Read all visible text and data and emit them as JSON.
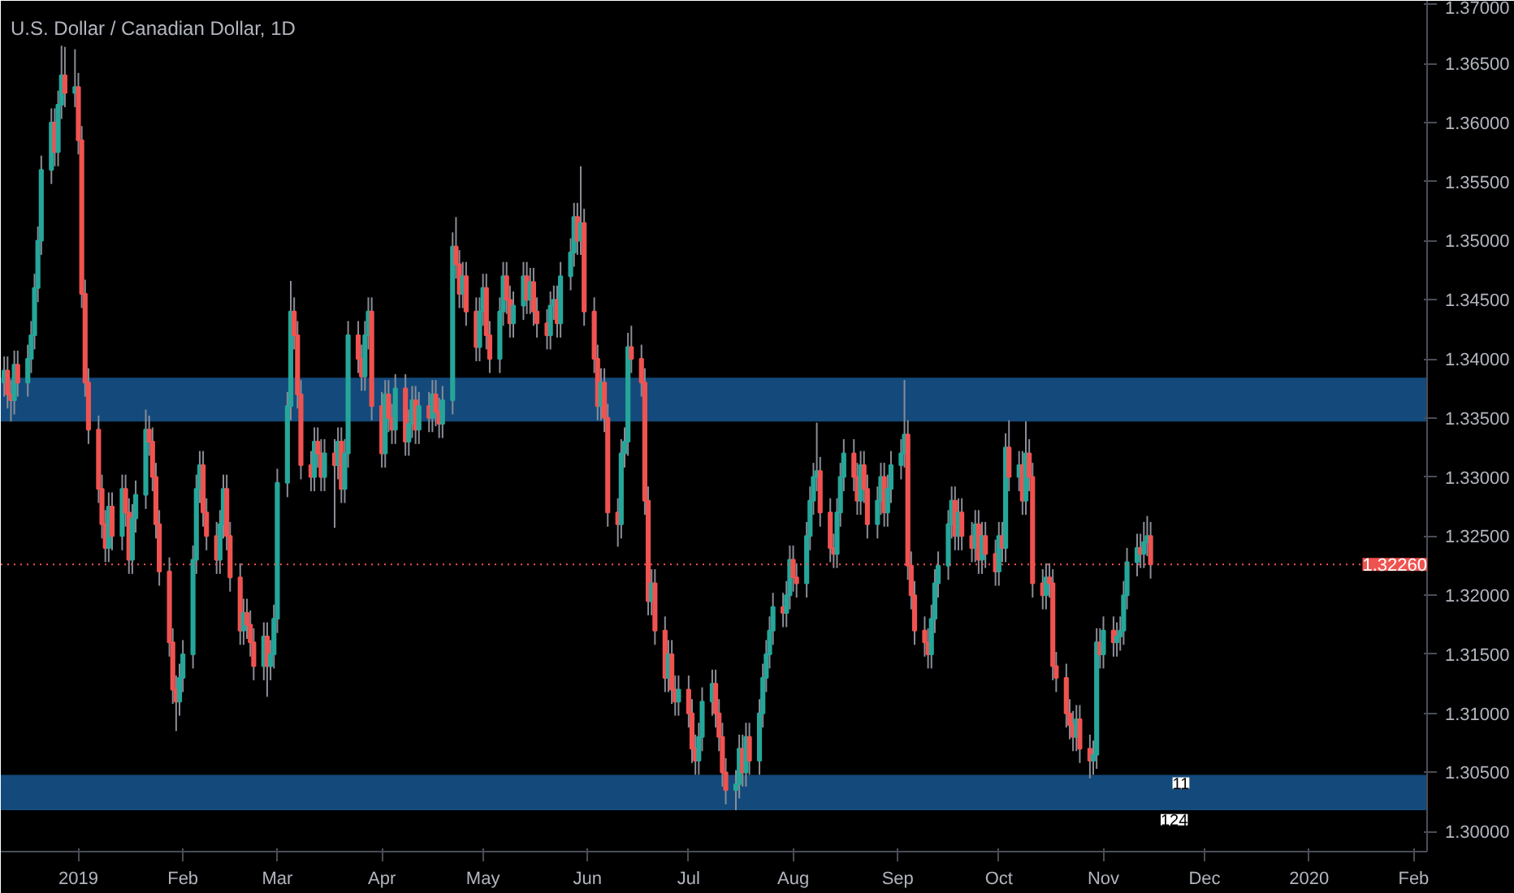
{
  "chart_data": {
    "type": "candlestick",
    "title": "U.S. Dollar / Canadian Dollar, 1D",
    "colors": [
      "#26a69a",
      "#ef5350",
      "#ef5350",
      "#26a69a",
      "#ef5350",
      "#26a69a",
      "#26a69a",
      "#26a69a",
      "#26a69a",
      "#26a69a",
      "#26a69a",
      "#ef5350",
      "#26a69a",
      "#26a69a",
      "#ef5350",
      "#26a69a",
      "#ef5350",
      "#ef5350",
      "#ef5350",
      "#ef5350",
      "#ef5350",
      "#ef5350",
      "#ef5350",
      "#26a69a",
      "#ef5350",
      "#26a69a",
      "#ef5350",
      "#ef5350",
      "#26a69a",
      "#26a69a",
      "#26a69a",
      "#ef5350",
      "#ef5350",
      "#ef5350",
      "#ef5350",
      "#ef5350",
      "#ef5350",
      "#ef5350",
      "#26a69a",
      "#26a69a",
      "#26a69a",
      "#26a69a",
      "#26a69a",
      "#ef5350",
      "#ef5350",
      "#ef5350",
      "#26a69a",
      "#26a69a",
      "#ef5350",
      "#ef5350",
      "#ef5350",
      "#26a69a",
      "#ef5350",
      "#ef5350",
      "#ef5350",
      "#26a69a",
      "#ef5350",
      "#26a69a",
      "#26a69a",
      "#26a69a",
      "#26a69a",
      "#26a69a",
      "#ef5350",
      "#ef5350",
      "#ef5350",
      "#ef5350",
      "#26a69a",
      "#ef5350",
      "#ef5350",
      "#26a69a",
      "#ef5350",
      "#26a69a",
      "#ef5350",
      "#26a69a",
      "#26a69a",
      "#ef5350",
      "#ef5350",
      "#26a69a",
      "#26a69a",
      "#ef5350",
      "#ef5350",
      "#26a69a",
      "#ef5350",
      "#ef5350",
      "#26a69a",
      "#ef5350",
      "#26a69a",
      "#26a69a",
      "#ef5350",
      "#26a69a",
      "#ef5350",
      "#26a69a",
      "#ef5350",
      "#ef5350",
      "#26a69a",
      "#26a69a",
      "#ef5350",
      "#ef5350",
      "#26a69a",
      "#ef5350",
      "#ef5350",
      "#26a69a",
      "#26a69a",
      "#ef5350",
      "#ef5350",
      "#26a69a",
      "#26a69a",
      "#ef5350",
      "#ef5350",
      "#26a69a",
      "#26a69a",
      "#ef5350",
      "#26a69a",
      "#ef5350",
      "#ef5350",
      "#ef5350",
      "#26a69a",
      "#26a69a",
      "#ef5350",
      "#26a69a",
      "#26a69a",
      "#26a69a",
      "#ef5350",
      "#26a69a",
      "#ef5350",
      "#ef5350",
      "#ef5350",
      "#26a69a",
      "#ef5350",
      "#ef5350",
      "#ef5350",
      "#26a69a",
      "#26a69a",
      "#26a69a",
      "#ef5350",
      "#ef5350",
      "#ef5350",
      "#ef5350",
      "#26a69a",
      "#ef5350",
      "#ef5350",
      "#26a69a",
      "#ef5350",
      "#ef5350",
      "#26a69a",
      "#ef5350",
      "#ef5350",
      "#ef5350",
      "#26a69a",
      "#26a69a",
      "#26a69a",
      "#ef5350",
      "#ef5350",
      "#ef5350",
      "#ef5350",
      "#26a69a",
      "#26a69a",
      "#ef5350",
      "#26a69a",
      "#ef5350",
      "#26a69a",
      "#26a69a",
      "#26a69a",
      "#26a69a",
      "#26a69a",
      "#ef5350",
      "#26a69a",
      "#26a69a",
      "#ef5350",
      "#ef5350",
      "#26a69a",
      "#26a69a",
      "#26a69a",
      "#26a69a",
      "#ef5350",
      "#ef5350",
      "#ef5350",
      "#26a69a",
      "#26a69a",
      "#26a69a",
      "#ef5350",
      "#ef5350",
      "#26a69a",
      "#ef5350",
      "#ef5350",
      "#26a69a",
      "#26a69a",
      "#ef5350",
      "#26a69a",
      "#26a69a",
      "#26a69a",
      "#26a69a",
      "#ef5350",
      "#ef5350",
      "#ef5350",
      "#ef5350",
      "#ef5350",
      "#26a69a",
      "#26a69a",
      "#26a69a",
      "#26a69a",
      "#26a69a",
      "#ef5350",
      "#26a69a",
      "#ef5350",
      "#ef5350",
      "#26a69a",
      "#ef5350",
      "#26a69a",
      "#ef5350",
      "#ef5350",
      "#26a69a",
      "#ef5350",
      "#26a69a",
      "#ef5350",
      "#26a69a",
      "#ef5350",
      "#26a69a",
      "#ef5350",
      "#ef5350",
      "#ef5350",
      "#26a69a",
      "#ef5350",
      "#ef5350",
      "#ef5350",
      "#ef5350",
      "#ef5350",
      "#ef5350",
      "#26a69a",
      "#ef5350",
      "#ef5350",
      "#26a69a",
      "#26a69a",
      "#ef5350",
      "#26a69a",
      "#ef5350",
      "#26a69a",
      "#26a69a",
      "#26a69a",
      "#26a69a",
      "#26a69a",
      "#ef5350",
      "#26a69a",
      "#26a69a",
      "#ef5350"
    ],
    "x": [
      "2018-12-10",
      "2018-12-11",
      "2018-12-12",
      "2018-12-13",
      "2018-12-14",
      "2018-12-17",
      "2018-12-18",
      "2018-12-19",
      "2018-12-20",
      "2018-12-21",
      "2018-12-24",
      "2018-12-25",
      "2018-12-26",
      "2018-12-27",
      "2018-12-28",
      "2018-12-31",
      "2019-01-01",
      "2019-01-02",
      "2019-01-03",
      "2019-01-04",
      "2019-01-07",
      "2019-01-08",
      "2019-01-09",
      "2019-01-10",
      "2019-01-11",
      "2019-01-14",
      "2019-01-15",
      "2019-01-16",
      "2019-01-17",
      "2019-01-18",
      "2019-01-21",
      "2019-01-22",
      "2019-01-23",
      "2019-01-24",
      "2019-01-25",
      "2019-01-28",
      "2019-01-29",
      "2019-01-30",
      "2019-01-31",
      "2019-02-01",
      "2019-02-04",
      "2019-02-05",
      "2019-02-06",
      "2019-02-07",
      "2019-02-08",
      "2019-02-11",
      "2019-02-12",
      "2019-02-13",
      "2019-02-14",
      "2019-02-15",
      "2019-02-18",
      "2019-02-19",
      "2019-02-20",
      "2019-02-21",
      "2019-02-22",
      "2019-02-25",
      "2019-02-26",
      "2019-02-27",
      "2019-02-28",
      "2019-03-01",
      "2019-03-04",
      "2019-03-05",
      "2019-03-06",
      "2019-03-07",
      "2019-03-08",
      "2019-03-11",
      "2019-03-12",
      "2019-03-13",
      "2019-03-14",
      "2019-03-15",
      "2019-03-18",
      "2019-03-19",
      "2019-03-20",
      "2019-03-21",
      "2019-03-22",
      "2019-03-25",
      "2019-03-26",
      "2019-03-27",
      "2019-03-28",
      "2019-03-29",
      "2019-04-01",
      "2019-04-02",
      "2019-04-03",
      "2019-04-04",
      "2019-04-05",
      "2019-04-08",
      "2019-04-09",
      "2019-04-10",
      "2019-04-11",
      "2019-04-12",
      "2019-04-15",
      "2019-04-16",
      "2019-04-17",
      "2019-04-18",
      "2019-04-19",
      "2019-04-22",
      "2019-04-23",
      "2019-04-24",
      "2019-04-25",
      "2019-04-26",
      "2019-04-29",
      "2019-04-30",
      "2019-05-01",
      "2019-05-02",
      "2019-05-03",
      "2019-05-06",
      "2019-05-07",
      "2019-05-08",
      "2019-05-09",
      "2019-05-10",
      "2019-05-13",
      "2019-05-14",
      "2019-05-15",
      "2019-05-16",
      "2019-05-17",
      "2019-05-20",
      "2019-05-21",
      "2019-05-22",
      "2019-05-23",
      "2019-05-24",
      "2019-05-27",
      "2019-05-28",
      "2019-05-29",
      "2019-05-30",
      "2019-05-31",
      "2019-06-03",
      "2019-06-04",
      "2019-06-05",
      "2019-06-06",
      "2019-06-07",
      "2019-06-10",
      "2019-06-11",
      "2019-06-12",
      "2019-06-13",
      "2019-06-14",
      "2019-06-17",
      "2019-06-18",
      "2019-06-19",
      "2019-06-20",
      "2019-06-21",
      "2019-06-24",
      "2019-06-25",
      "2019-06-26",
      "2019-06-27",
      "2019-06-28",
      "2019-07-01",
      "2019-07-02",
      "2019-07-03",
      "2019-07-04",
      "2019-07-05",
      "2019-07-08",
      "2019-07-09",
      "2019-07-10",
      "2019-07-11",
      "2019-07-12",
      "2019-07-15",
      "2019-07-16",
      "2019-07-17",
      "2019-07-18",
      "2019-07-19",
      "2019-07-22",
      "2019-07-23",
      "2019-07-24",
      "2019-07-25",
      "2019-07-26",
      "2019-07-29",
      "2019-07-30",
      "2019-07-31",
      "2019-08-01",
      "2019-08-02",
      "2019-08-05",
      "2019-08-06",
      "2019-08-07",
      "2019-08-08",
      "2019-08-09",
      "2019-08-12",
      "2019-08-13",
      "2019-08-14",
      "2019-08-15",
      "2019-08-16",
      "2019-08-19",
      "2019-08-20",
      "2019-08-21",
      "2019-08-22",
      "2019-08-23",
      "2019-08-26",
      "2019-08-27",
      "2019-08-28",
      "2019-08-29",
      "2019-08-30",
      "2019-09-02",
      "2019-09-03",
      "2019-09-04",
      "2019-09-05",
      "2019-09-06",
      "2019-09-09",
      "2019-09-10",
      "2019-09-11",
      "2019-09-12",
      "2019-09-13",
      "2019-09-16",
      "2019-09-17",
      "2019-09-18",
      "2019-09-19",
      "2019-09-20",
      "2019-09-23",
      "2019-09-24",
      "2019-09-25",
      "2019-09-26",
      "2019-09-27",
      "2019-09-30",
      "2019-10-01",
      "2019-10-02",
      "2019-10-03",
      "2019-10-04",
      "2019-10-07",
      "2019-10-08",
      "2019-10-09",
      "2019-10-10",
      "2019-10-11",
      "2019-10-14",
      "2019-10-15",
      "2019-10-16",
      "2019-10-17",
      "2019-10-18",
      "2019-10-21",
      "2019-10-22",
      "2019-10-23",
      "2019-10-24",
      "2019-10-25",
      "2019-10-28",
      "2019-10-29",
      "2019-10-30",
      "2019-10-31",
      "2019-11-01",
      "2019-11-04",
      "2019-11-05",
      "2019-11-06",
      "2019-11-07",
      "2019-11-08",
      "2019-11-11",
      "2019-11-12",
      "2019-11-13",
      "2019-11-14",
      "2019-11-15"
    ],
    "ohlc": [
      [
        1.338,
        1.3402,
        1.3368,
        1.339
      ],
      [
        1.339,
        1.3402,
        1.3358,
        1.337
      ],
      [
        1.337,
        1.3382,
        1.3347,
        1.3365
      ],
      [
        1.3365,
        1.3407,
        1.3353,
        1.3395
      ],
      [
        1.3395,
        1.3407,
        1.3368,
        1.338
      ],
      [
        1.338,
        1.3412,
        1.3368,
        1.34
      ],
      [
        1.34,
        1.3432,
        1.3388,
        1.342
      ],
      [
        1.342,
        1.3472,
        1.3408,
        1.346
      ],
      [
        1.346,
        1.3512,
        1.3448,
        1.35
      ],
      [
        1.35,
        1.3572,
        1.3488,
        1.356
      ],
      [
        1.356,
        1.3612,
        1.3548,
        1.36
      ],
      [
        1.36,
        1.3612,
        1.3563,
        1.3575
      ],
      [
        1.3575,
        1.3627,
        1.3563,
        1.3615
      ],
      [
        1.3615,
        1.3665,
        1.3603,
        1.364
      ],
      [
        1.364,
        1.3664,
        1.3613,
        1.3625
      ],
      [
        1.3625,
        1.3662,
        1.3613,
        1.363
      ],
      [
        1.363,
        1.3642,
        1.3573,
        1.3585
      ],
      [
        1.3585,
        1.3597,
        1.3443,
        1.3455
      ],
      [
        1.3455,
        1.3467,
        1.3368,
        1.338
      ],
      [
        1.338,
        1.3392,
        1.3328,
        1.334
      ],
      [
        1.334,
        1.3352,
        1.3278,
        1.329
      ],
      [
        1.329,
        1.3302,
        1.3248,
        1.326
      ],
      [
        1.326,
        1.3272,
        1.3228,
        1.324
      ],
      [
        1.324,
        1.3287,
        1.3228,
        1.3275
      ],
      [
        1.3275,
        1.3287,
        1.3238,
        1.325
      ],
      [
        1.325,
        1.3302,
        1.3238,
        1.329
      ],
      [
        1.329,
        1.3302,
        1.3258,
        1.327
      ],
      [
        1.327,
        1.3282,
        1.3218,
        1.323
      ],
      [
        1.323,
        1.3277,
        1.3218,
        1.3265
      ],
      [
        1.3265,
        1.3297,
        1.3253,
        1.3285
      ],
      [
        1.3285,
        1.3357,
        1.3273,
        1.334
      ],
      [
        1.334,
        1.3352,
        1.3318,
        1.333
      ],
      [
        1.333,
        1.3342,
        1.3288,
        1.33
      ],
      [
        1.33,
        1.3312,
        1.3248,
        1.326
      ],
      [
        1.326,
        1.3272,
        1.3208,
        1.322
      ],
      [
        1.322,
        1.3232,
        1.3148,
        1.316
      ],
      [
        1.316,
        1.3172,
        1.3108,
        1.312
      ],
      [
        1.312,
        1.3132,
        1.3085,
        1.311
      ],
      [
        1.311,
        1.3142,
        1.3098,
        1.313
      ],
      [
        1.313,
        1.3162,
        1.3118,
        1.315
      ],
      [
        1.315,
        1.3242,
        1.3138,
        1.323
      ],
      [
        1.323,
        1.3302,
        1.3218,
        1.329
      ],
      [
        1.329,
        1.3322,
        1.3278,
        1.331
      ],
      [
        1.331,
        1.3322,
        1.3258,
        1.327
      ],
      [
        1.327,
        1.3282,
        1.3238,
        1.325
      ],
      [
        1.325,
        1.3262,
        1.3218,
        1.323
      ],
      [
        1.323,
        1.3272,
        1.3218,
        1.326
      ],
      [
        1.326,
        1.3302,
        1.3248,
        1.329
      ],
      [
        1.329,
        1.3302,
        1.3238,
        1.325
      ],
      [
        1.325,
        1.3262,
        1.3203,
        1.3215
      ],
      [
        1.3215,
        1.3227,
        1.3158,
        1.317
      ],
      [
        1.317,
        1.3197,
        1.3158,
        1.3185
      ],
      [
        1.3185,
        1.3197,
        1.3163,
        1.3175
      ],
      [
        1.3175,
        1.3187,
        1.3148,
        1.316
      ],
      [
        1.316,
        1.3172,
        1.3128,
        1.314
      ],
      [
        1.314,
        1.3177,
        1.3128,
        1.3165
      ],
      [
        1.3165,
        1.3177,
        1.3114,
        1.314
      ],
      [
        1.314,
        1.3162,
        1.3128,
        1.315
      ],
      [
        1.315,
        1.3192,
        1.3138,
        1.318
      ],
      [
        1.318,
        1.3307,
        1.3168,
        1.3295
      ],
      [
        1.3295,
        1.3372,
        1.3283,
        1.336
      ],
      [
        1.336,
        1.3466,
        1.3348,
        1.344
      ],
      [
        1.344,
        1.3452,
        1.3408,
        1.342
      ],
      [
        1.342,
        1.3432,
        1.3358,
        1.337
      ],
      [
        1.337,
        1.3382,
        1.3298,
        1.331
      ],
      [
        1.331,
        1.3322,
        1.3288,
        1.33
      ],
      [
        1.33,
        1.3342,
        1.3288,
        1.333
      ],
      [
        1.333,
        1.3342,
        1.3308,
        1.332
      ],
      [
        1.332,
        1.3332,
        1.3288,
        1.33
      ],
      [
        1.33,
        1.3332,
        1.3288,
        1.332
      ],
      [
        1.332,
        1.3332,
        1.3257,
        1.331
      ],
      [
        1.331,
        1.3342,
        1.3298,
        1.333
      ],
      [
        1.333,
        1.3342,
        1.3278,
        1.329
      ],
      [
        1.329,
        1.3332,
        1.3278,
        1.332
      ],
      [
        1.332,
        1.3432,
        1.3308,
        1.342
      ],
      [
        1.342,
        1.3432,
        1.3388,
        1.34
      ],
      [
        1.34,
        1.3412,
        1.3373,
        1.3385
      ],
      [
        1.3385,
        1.3432,
        1.3373,
        1.342
      ],
      [
        1.342,
        1.3452,
        1.3408,
        1.344
      ],
      [
        1.344,
        1.3452,
        1.3348,
        1.336
      ],
      [
        1.336,
        1.3372,
        1.3308,
        1.332
      ],
      [
        1.332,
        1.3382,
        1.3308,
        1.337
      ],
      [
        1.337,
        1.3382,
        1.3338,
        1.335
      ],
      [
        1.335,
        1.3362,
        1.3328,
        1.334
      ],
      [
        1.334,
        1.3387,
        1.3328,
        1.3375
      ],
      [
        1.3375,
        1.3387,
        1.3318,
        1.333
      ],
      [
        1.333,
        1.3357,
        1.3318,
        1.3345
      ],
      [
        1.3345,
        1.3377,
        1.3333,
        1.3365
      ],
      [
        1.3365,
        1.3377,
        1.3328,
        1.334
      ],
      [
        1.334,
        1.3372,
        1.3328,
        1.336
      ],
      [
        1.336,
        1.3372,
        1.3338,
        1.335
      ],
      [
        1.335,
        1.3382,
        1.3338,
        1.337
      ],
      [
        1.337,
        1.3382,
        1.3343,
        1.3355
      ],
      [
        1.3355,
        1.3367,
        1.3333,
        1.3345
      ],
      [
        1.3345,
        1.3377,
        1.3333,
        1.3365
      ],
      [
        1.3365,
        1.3507,
        1.3353,
        1.3495
      ],
      [
        1.3495,
        1.352,
        1.3468,
        1.348
      ],
      [
        1.348,
        1.3492,
        1.3443,
        1.3455
      ],
      [
        1.3455,
        1.3482,
        1.3443,
        1.347
      ],
      [
        1.347,
        1.3482,
        1.3428,
        1.344
      ],
      [
        1.344,
        1.3452,
        1.3398,
        1.341
      ],
      [
        1.341,
        1.3452,
        1.3398,
        1.344
      ],
      [
        1.344,
        1.3472,
        1.3428,
        1.346
      ],
      [
        1.346,
        1.3472,
        1.3408,
        1.342
      ],
      [
        1.342,
        1.3432,
        1.3388,
        1.34
      ],
      [
        1.34,
        1.3452,
        1.3388,
        1.344
      ],
      [
        1.344,
        1.3482,
        1.3428,
        1.347
      ],
      [
        1.347,
        1.3482,
        1.3438,
        1.345
      ],
      [
        1.345,
        1.3462,
        1.3418,
        1.343
      ],
      [
        1.343,
        1.3457,
        1.3418,
        1.3445
      ],
      [
        1.3445,
        1.3482,
        1.3433,
        1.347
      ],
      [
        1.347,
        1.3482,
        1.3438,
        1.345
      ],
      [
        1.345,
        1.3477,
        1.3438,
        1.3465
      ],
      [
        1.3465,
        1.3477,
        1.3428,
        1.344
      ],
      [
        1.344,
        1.3452,
        1.3418,
        1.343
      ],
      [
        1.343,
        1.3442,
        1.3408,
        1.342
      ],
      [
        1.342,
        1.3457,
        1.3408,
        1.3445
      ],
      [
        1.3445,
        1.3462,
        1.3433,
        1.345
      ],
      [
        1.345,
        1.3462,
        1.3418,
        1.343
      ],
      [
        1.343,
        1.3482,
        1.3418,
        1.347
      ],
      [
        1.347,
        1.3502,
        1.3458,
        1.349
      ],
      [
        1.349,
        1.3532,
        1.3478,
        1.352
      ],
      [
        1.352,
        1.3532,
        1.3488,
        1.35
      ],
      [
        1.35,
        1.3563,
        1.3488,
        1.3515
      ],
      [
        1.3515,
        1.3527,
        1.3428,
        1.344
      ],
      [
        1.344,
        1.3452,
        1.3388,
        1.34
      ],
      [
        1.34,
        1.3412,
        1.3348,
        1.336
      ],
      [
        1.336,
        1.3392,
        1.3348,
        1.338
      ],
      [
        1.338,
        1.3392,
        1.3338,
        1.335
      ],
      [
        1.335,
        1.3362,
        1.3258,
        1.327
      ],
      [
        1.327,
        1.3282,
        1.3241,
        1.326
      ],
      [
        1.326,
        1.3332,
        1.3248,
        1.332
      ],
      [
        1.332,
        1.3342,
        1.3308,
        1.333
      ],
      [
        1.333,
        1.3422,
        1.3318,
        1.341
      ],
      [
        1.341,
        1.3428,
        1.3388,
        1.34
      ],
      [
        1.34,
        1.3412,
        1.3368,
        1.338
      ],
      [
        1.338,
        1.3392,
        1.3268,
        1.328
      ],
      [
        1.328,
        1.3292,
        1.3183,
        1.3195
      ],
      [
        1.3195,
        1.3222,
        1.3183,
        1.321
      ],
      [
        1.321,
        1.3222,
        1.3158,
        1.317
      ],
      [
        1.317,
        1.3182,
        1.3118,
        1.313
      ],
      [
        1.313,
        1.3162,
        1.3118,
        1.315
      ],
      [
        1.315,
        1.3162,
        1.3108,
        1.312
      ],
      [
        1.312,
        1.3132,
        1.3098,
        1.311
      ],
      [
        1.311,
        1.3132,
        1.3098,
        1.312
      ],
      [
        1.312,
        1.3132,
        1.3088,
        1.31
      ],
      [
        1.31,
        1.3112,
        1.3058,
        1.307
      ],
      [
        1.307,
        1.3082,
        1.3048,
        1.306
      ],
      [
        1.306,
        1.3092,
        1.3048,
        1.308
      ],
      [
        1.308,
        1.3122,
        1.3068,
        1.311
      ],
      [
        1.311,
        1.3137,
        1.3098,
        1.3125
      ],
      [
        1.3125,
        1.3137,
        1.3088,
        1.31
      ],
      [
        1.31,
        1.3112,
        1.3068,
        1.308
      ],
      [
        1.308,
        1.3092,
        1.3038,
        1.305
      ],
      [
        1.305,
        1.3062,
        1.3023,
        1.3035
      ],
      [
        1.3035,
        1.3052,
        1.3018,
        1.304
      ],
      [
        1.304,
        1.3082,
        1.3028,
        1.307
      ],
      [
        1.307,
        1.3082,
        1.3038,
        1.305
      ],
      [
        1.305,
        1.3092,
        1.3038,
        1.308
      ],
      [
        1.308,
        1.3092,
        1.3048,
        1.306
      ],
      [
        1.306,
        1.3112,
        1.3048,
        1.31
      ],
      [
        1.31,
        1.3142,
        1.3088,
        1.313
      ],
      [
        1.313,
        1.3162,
        1.3118,
        1.315
      ],
      [
        1.315,
        1.3182,
        1.3138,
        1.317
      ],
      [
        1.317,
        1.3202,
        1.3158,
        1.319
      ],
      [
        1.319,
        1.3202,
        1.3173,
        1.3185
      ],
      [
        1.3185,
        1.3212,
        1.3173,
        1.32
      ],
      [
        1.32,
        1.3242,
        1.3188,
        1.323
      ],
      [
        1.323,
        1.3242,
        1.3203,
        1.3215
      ],
      [
        1.3215,
        1.3227,
        1.3198,
        1.321
      ],
      [
        1.321,
        1.3262,
        1.3198,
        1.325
      ],
      [
        1.325,
        1.3292,
        1.3238,
        1.328
      ],
      [
        1.328,
        1.3312,
        1.3268,
        1.33
      ],
      [
        1.33,
        1.3346,
        1.3288,
        1.3305
      ],
      [
        1.3305,
        1.3317,
        1.3258,
        1.327
      ],
      [
        1.327,
        1.3282,
        1.3228,
        1.324
      ],
      [
        1.324,
        1.3252,
        1.3223,
        1.3235
      ],
      [
        1.3235,
        1.3282,
        1.3223,
        1.327
      ],
      [
        1.327,
        1.3312,
        1.3258,
        1.33
      ],
      [
        1.33,
        1.3332,
        1.3288,
        1.332
      ],
      [
        1.332,
        1.3332,
        1.3288,
        1.33
      ],
      [
        1.33,
        1.3312,
        1.3268,
        1.328
      ],
      [
        1.328,
        1.3322,
        1.3268,
        1.331
      ],
      [
        1.331,
        1.3322,
        1.3278,
        1.329
      ],
      [
        1.329,
        1.3302,
        1.3248,
        1.326
      ],
      [
        1.326,
        1.3292,
        1.3248,
        1.328
      ],
      [
        1.328,
        1.3312,
        1.3268,
        1.33
      ],
      [
        1.33,
        1.3312,
        1.3258,
        1.327
      ],
      [
        1.327,
        1.3302,
        1.3258,
        1.329
      ],
      [
        1.329,
        1.3322,
        1.3278,
        1.331
      ],
      [
        1.331,
        1.3332,
        1.3298,
        1.332
      ],
      [
        1.332,
        1.3382,
        1.3308,
        1.3336
      ],
      [
        1.3336,
        1.3348,
        1.3213,
        1.3225
      ],
      [
        1.3225,
        1.3237,
        1.3188,
        1.32
      ],
      [
        1.32,
        1.3212,
        1.3158,
        1.317
      ],
      [
        1.317,
        1.3182,
        1.3148,
        1.316
      ],
      [
        1.316,
        1.3172,
        1.3138,
        1.315
      ],
      [
        1.315,
        1.3192,
        1.3138,
        1.318
      ],
      [
        1.318,
        1.3222,
        1.3168,
        1.321
      ],
      [
        1.321,
        1.3237,
        1.3198,
        1.3225
      ],
      [
        1.3225,
        1.3272,
        1.3213,
        1.326
      ],
      [
        1.326,
        1.3292,
        1.3248,
        1.328
      ],
      [
        1.328,
        1.3292,
        1.3238,
        1.325
      ],
      [
        1.325,
        1.3282,
        1.3238,
        1.327
      ],
      [
        1.327,
        1.3282,
        1.3238,
        1.325
      ],
      [
        1.325,
        1.3262,
        1.3228,
        1.324
      ],
      [
        1.324,
        1.3272,
        1.3228,
        1.326
      ],
      [
        1.326,
        1.3272,
        1.3218,
        1.323
      ],
      [
        1.323,
        1.3262,
        1.3218,
        1.325
      ],
      [
        1.325,
        1.3262,
        1.3223,
        1.3235
      ],
      [
        1.3235,
        1.3247,
        1.3208,
        1.322
      ],
      [
        1.322,
        1.3262,
        1.3208,
        1.325
      ],
      [
        1.325,
        1.3262,
        1.3228,
        1.324
      ],
      [
        1.324,
        1.3337,
        1.3228,
        1.3325
      ],
      [
        1.3325,
        1.3348,
        1.3288,
        1.33
      ],
      [
        1.33,
        1.3322,
        1.3288,
        1.331
      ],
      [
        1.331,
        1.3322,
        1.3268,
        1.328
      ],
      [
        1.328,
        1.3347,
        1.3268,
        1.332
      ],
      [
        1.332,
        1.3332,
        1.3288,
        1.33
      ],
      [
        1.33,
        1.3312,
        1.3198,
        1.321
      ],
      [
        1.321,
        1.3222,
        1.3188,
        1.32
      ],
      [
        1.32,
        1.3227,
        1.3188,
        1.3215
      ],
      [
        1.3215,
        1.3227,
        1.3198,
        1.321
      ],
      [
        1.321,
        1.3222,
        1.3128,
        1.314
      ],
      [
        1.314,
        1.3152,
        1.3118,
        1.313
      ],
      [
        1.313,
        1.3142,
        1.3088,
        1.31
      ],
      [
        1.31,
        1.3112,
        1.3078,
        1.309
      ],
      [
        1.309,
        1.3102,
        1.3068,
        1.308
      ],
      [
        1.308,
        1.3107,
        1.3068,
        1.3095
      ],
      [
        1.3095,
        1.3107,
        1.3058,
        1.307
      ],
      [
        1.307,
        1.3082,
        1.3045,
        1.306
      ],
      [
        1.306,
        1.3077,
        1.3048,
        1.3065
      ],
      [
        1.3065,
        1.3172,
        1.3053,
        1.316
      ],
      [
        1.316,
        1.3172,
        1.3138,
        1.315
      ],
      [
        1.315,
        1.3182,
        1.3138,
        1.317
      ],
      [
        1.317,
        1.3182,
        1.3148,
        1.316
      ],
      [
        1.316,
        1.3177,
        1.3148,
        1.3165
      ],
      [
        1.3165,
        1.3182,
        1.3153,
        1.317
      ],
      [
        1.317,
        1.3212,
        1.3158,
        1.32
      ],
      [
        1.32,
        1.324,
        1.3188,
        1.3228
      ],
      [
        1.3228,
        1.3252,
        1.3216,
        1.324
      ],
      [
        1.324,
        1.3252,
        1.3223,
        1.3235
      ],
      [
        1.3235,
        1.3262,
        1.3223,
        1.3245
      ],
      [
        1.3245,
        1.3267,
        1.3233,
        1.325
      ],
      [
        1.325,
        1.3262,
        1.3214,
        1.3226
      ]
    ],
    "xlim": [
      "2018-12-09",
      "2020-02-05"
    ],
    "xticks": [
      {
        "value": "2019-01-01",
        "label": "2019"
      },
      {
        "value": "2019-02-01",
        "label": "Feb"
      },
      {
        "value": "2019-03-01",
        "label": "Mar"
      },
      {
        "value": "2019-04-01",
        "label": "Apr"
      },
      {
        "value": "2019-05-01",
        "label": "May"
      },
      {
        "value": "2019-06-01",
        "label": "Jun"
      },
      {
        "value": "2019-07-01",
        "label": "Jul"
      },
      {
        "value": "2019-08-01",
        "label": "Aug"
      },
      {
        "value": "2019-09-01",
        "label": "Sep"
      },
      {
        "value": "2019-10-01",
        "label": "Oct"
      },
      {
        "value": "2019-11-01",
        "label": "Nov"
      },
      {
        "value": "2019-12-01",
        "label": "Dec"
      },
      {
        "value": "2020-01-01",
        "label": "2020"
      },
      {
        "value": "2020-02-01",
        "label": "Feb"
      }
    ],
    "ylim": [
      1.2983,
      1.3703
    ],
    "yticks": [
      {
        "value": 1.3,
        "label": "1.30000"
      },
      {
        "value": 1.305,
        "label": "1.30500"
      },
      {
        "value": 1.31,
        "label": "1.31000"
      },
      {
        "value": 1.315,
        "label": "1.31500"
      },
      {
        "value": 1.32,
        "label": "1.32000"
      },
      {
        "value": 1.325,
        "label": "1.32500"
      },
      {
        "value": 1.33,
        "label": "1.33000"
      },
      {
        "value": 1.335,
        "label": "1.33500"
      },
      {
        "value": 1.34,
        "label": "1.34000"
      },
      {
        "value": 1.345,
        "label": "1.34500"
      },
      {
        "value": 1.35,
        "label": "1.35000"
      },
      {
        "value": 1.355,
        "label": "1.35500"
      },
      {
        "value": 1.36,
        "label": "1.36000"
      },
      {
        "value": 1.365,
        "label": "1.36500"
      },
      {
        "value": 1.37,
        "label": "1.37000"
      }
    ],
    "bands": [
      {
        "axis": "y",
        "from": 1.3347,
        "to": 1.3384,
        "color": "#134a7b"
      },
      {
        "axis": "y",
        "from": 1.3018,
        "to": 1.3048,
        "color": "#134a7b"
      }
    ],
    "ref_lines": [
      {
        "axis": "y",
        "value": 1.3226,
        "label": "1.32260",
        "color": "#ef5350"
      }
    ],
    "annotations": [
      {
        "text": "11",
        "x": "2019-11-24",
        "y": 1.3041
      },
      {
        "text": "124",
        "x": "2019-11-22",
        "y": 1.301
      }
    ],
    "grid": false
  }
}
